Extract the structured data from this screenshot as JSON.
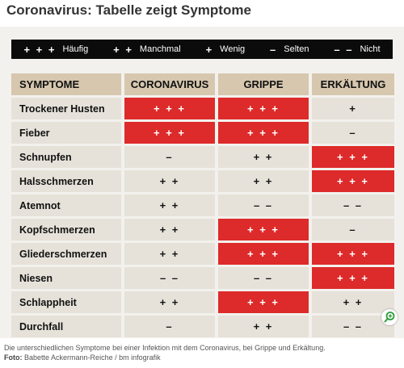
{
  "title": "Coronavirus: Tabelle zeigt Symptome",
  "legend": [
    {
      "symbol": "+ + +",
      "label": "Häufig"
    },
    {
      "symbol": "+ +",
      "label": "Manchmal"
    },
    {
      "symbol": "+",
      "label": "Wenig"
    },
    {
      "symbol": "–",
      "label": "Selten"
    },
    {
      "symbol": "– –",
      "label": "Nicht"
    }
  ],
  "table": {
    "headers": [
      "SYMPTOME",
      "CORONAVIRUS",
      "GRIPPE",
      "ERKÄLTUNG"
    ],
    "rows": [
      {
        "symptom": "Trockener Husten",
        "values": [
          "+ + +",
          "+ + +",
          "+"
        ]
      },
      {
        "symptom": "Fieber",
        "values": [
          "+ + +",
          "+ + +",
          "–"
        ]
      },
      {
        "symptom": "Schnupfen",
        "values": [
          "–",
          "+ +",
          "+ + +"
        ]
      },
      {
        "symptom": "Halsschmerzen",
        "values": [
          "+ +",
          "+ +",
          "+ + +"
        ]
      },
      {
        "symptom": "Atemnot",
        "values": [
          "+ +",
          "– –",
          "– –"
        ]
      },
      {
        "symptom": "Kopfschmerzen",
        "values": [
          "+ +",
          "+ + +",
          "–"
        ]
      },
      {
        "symptom": "Gliederschmerzen",
        "values": [
          "+ +",
          "+ + +",
          "+ + +"
        ]
      },
      {
        "symptom": "Niesen",
        "values": [
          "– –",
          "– –",
          "+ + +"
        ]
      },
      {
        "symptom": "Schlappheit",
        "values": [
          "+ +",
          "+ + +",
          "+ +"
        ]
      },
      {
        "symptom": "Durchfall",
        "values": [
          "–",
          "+ +",
          "– –"
        ]
      }
    ]
  },
  "colors": {
    "highlight": "#dd2a2a",
    "header": "#d6c7ae",
    "cell": "#e6e2da",
    "legend_bg": "#0b0b0b"
  },
  "zoom_icon": "magnifier-plus-icon",
  "caption": {
    "text": "Die unterschiedlichen Symptome bei einer Infektion mit dem Coronavirus, bei Grippe und Erkältung.",
    "credit_label": "Foto:",
    "credit": "Babette Ackermann-Reiche / bm infografik"
  }
}
